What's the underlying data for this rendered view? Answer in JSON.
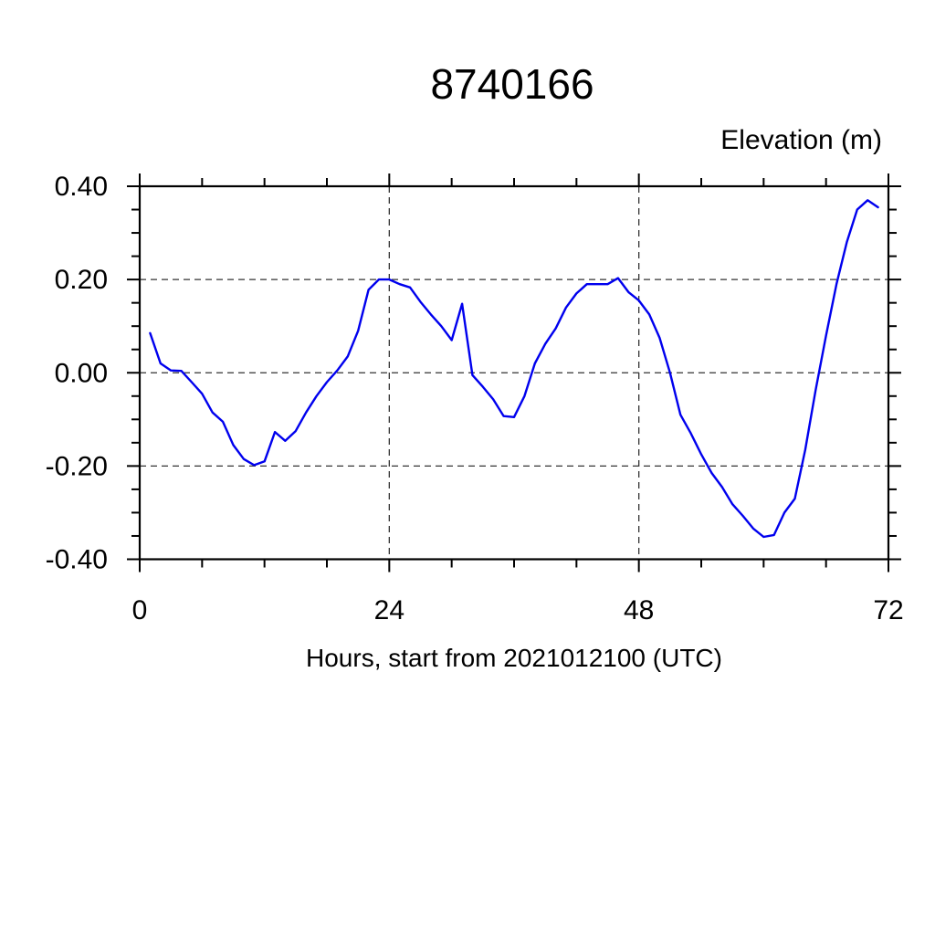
{
  "chart_data": {
    "type": "line",
    "title": "8740166",
    "ylabel": "Elevation (m)",
    "xlabel": "Hours, start from 2021012100 (UTC)",
    "xlim": [
      0,
      72
    ],
    "ylim": [
      -0.4,
      0.4
    ],
    "x_major_ticks": [
      0,
      24,
      48,
      72
    ],
    "x_tick_labels": [
      "0",
      "24",
      "48",
      "72"
    ],
    "x_minor_step": 6,
    "y_major_ticks": [
      0.4,
      0.2,
      0.0,
      -0.2,
      -0.4
    ],
    "y_tick_labels": [
      "0.40",
      "0.20",
      "0.00",
      "-0.20",
      "-0.40"
    ],
    "y_minor_step": 0.05,
    "grid_x": [
      24,
      48
    ],
    "grid_y": [
      0.2,
      0.0,
      -0.2
    ],
    "grid_on": true,
    "legend": "none",
    "line_color": "#0000EE",
    "axis_color": "#000000",
    "grid_line_color": "#333333",
    "series": [
      {
        "name": "elevation",
        "x": [
          1,
          2,
          3,
          4,
          5,
          6,
          7,
          8,
          9,
          10,
          11,
          12,
          13,
          14,
          15,
          16,
          17,
          18,
          19,
          20,
          21,
          22,
          23,
          24,
          25,
          26,
          27,
          28,
          29,
          30,
          31,
          32,
          33,
          34,
          35,
          36,
          37,
          38,
          39,
          40,
          41,
          42,
          43,
          44,
          45,
          46,
          47,
          48,
          49,
          50,
          51,
          52,
          53,
          54,
          55,
          56,
          57,
          58,
          59,
          60,
          61,
          62,
          63,
          64,
          65,
          66,
          67,
          68,
          69,
          70,
          71
        ],
        "y": [
          0.085,
          0.02,
          0.005,
          0.004,
          -0.02,
          -0.045,
          -0.085,
          -0.105,
          -0.155,
          -0.185,
          -0.198,
          -0.19,
          -0.127,
          -0.146,
          -0.125,
          -0.085,
          -0.05,
          -0.02,
          0.005,
          0.035,
          0.09,
          0.178,
          0.2,
          0.2,
          0.19,
          0.183,
          0.152,
          0.125,
          0.1,
          0.07,
          0.148,
          -0.005,
          -0.03,
          -0.057,
          -0.093,
          -0.095,
          -0.05,
          0.02,
          0.062,
          0.095,
          0.14,
          0.17,
          0.19,
          0.19,
          0.19,
          0.203,
          0.173,
          0.155,
          0.125,
          0.075,
          0.0,
          -0.09,
          -0.13,
          -0.175,
          -0.215,
          -0.245,
          -0.282,
          -0.307,
          -0.334,
          -0.352,
          -0.348,
          -0.3,
          -0.27,
          -0.165,
          -0.037,
          0.08,
          0.19,
          0.28,
          0.35,
          0.37,
          0.355
        ]
      }
    ]
  }
}
